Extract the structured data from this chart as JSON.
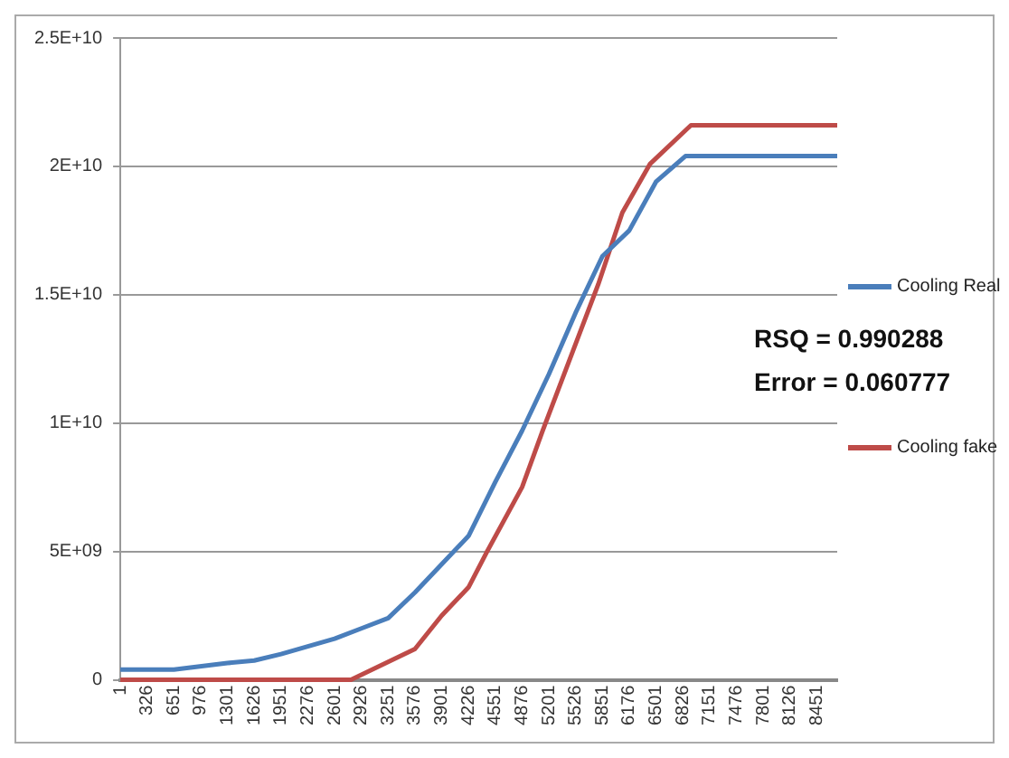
{
  "chart_data": {
    "type": "line",
    "annotations": [
      "RSQ = 0.990288",
      "Error = 0.060777"
    ],
    "xlim": [
      1,
      8700
    ],
    "xticks": [
      1,
      326,
      651,
      976,
      1301,
      1626,
      1951,
      2276,
      2601,
      2926,
      3251,
      3576,
      3901,
      4226,
      4551,
      4876,
      5201,
      5526,
      5851,
      6176,
      6501,
      6826,
      7151,
      7476,
      7801,
      8126,
      8451
    ],
    "ylim": [
      0,
      25000000000
    ],
    "yticks": [
      {
        "value": 0,
        "label": "0"
      },
      {
        "value": 5000000000,
        "label": "5E+09"
      },
      {
        "value": 10000000000,
        "label": "1E+10"
      },
      {
        "value": 15000000000,
        "label": "1.5E+10"
      },
      {
        "value": 20000000000,
        "label": "2E+10"
      },
      {
        "value": 25000000000,
        "label": "2.5E+10"
      }
    ],
    "grid": "y",
    "legend": "right",
    "marker": "none",
    "line_style": "solid",
    "series": [
      {
        "name": "Cooling Real",
        "color": "#4a7ebb",
        "x": [
          1,
          651,
          1301,
          1626,
          1951,
          2276,
          2601,
          2926,
          3251,
          3576,
          3901,
          4226,
          4551,
          4876,
          5201,
          5526,
          5851,
          6176,
          6501,
          6858,
          8700
        ],
        "values": [
          400000000,
          400000000,
          650000000,
          750000000,
          1000000000,
          1300000000,
          1600000000,
          2000000000,
          2400000000,
          3400000000,
          4500000000,
          5600000000,
          7700000000,
          9700000000,
          11900000000,
          14300000000,
          16500000000,
          17500000000,
          19400000000,
          20400000000,
          20400000000
        ]
      },
      {
        "name": "Cooling fake",
        "color": "#be4b48",
        "x": [
          1,
          2800,
          3576,
          3901,
          4226,
          4452,
          4876,
          5126,
          5800,
          6093,
          6430,
          6925,
          8700
        ],
        "values": [
          0,
          0,
          1200000000,
          2500000000,
          3600000000,
          5000000000,
          7500000000,
          9700000000,
          15400000000,
          18200000000,
          20100000000,
          21600000000,
          21600000000
        ]
      }
    ]
  }
}
